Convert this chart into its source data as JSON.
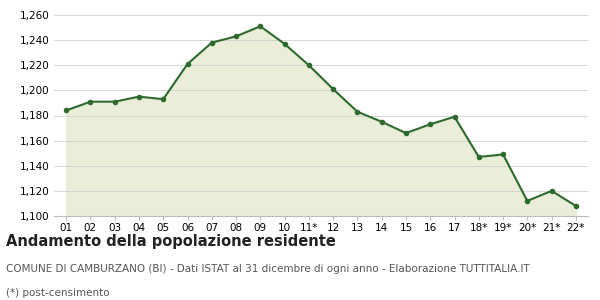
{
  "x_labels": [
    "01",
    "02",
    "03",
    "04",
    "05",
    "06",
    "07",
    "08",
    "09",
    "10",
    "11*",
    "12",
    "13",
    "14",
    "15",
    "16",
    "17",
    "18*",
    "19*",
    "20*",
    "21*",
    "22*"
  ],
  "y_values": [
    1184,
    1191,
    1191,
    1195,
    1193,
    1221,
    1238,
    1243,
    1251,
    1237,
    1220,
    1201,
    1183,
    1175,
    1166,
    1173,
    1179,
    1147,
    1149,
    1112,
    1120,
    1108
  ],
  "ylim": [
    1100,
    1260
  ],
  "yticks": [
    1100,
    1120,
    1140,
    1160,
    1180,
    1200,
    1220,
    1240,
    1260
  ],
  "line_color": "#2d6a2d",
  "fill_color": "#eaedd8",
  "marker_color": "#2d6a2d",
  "bg_color": "#ffffff",
  "grid_color": "#d0d0d0",
  "title": "Andamento della popolazione residente",
  "subtitle": "COMUNE DI CAMBURZANO (BI) - Dati ISTAT al 31 dicembre di ogni anno - Elaborazione TUTTITALIA.IT",
  "footnote": "(*) post-censimento",
  "title_fontsize": 10.5,
  "subtitle_fontsize": 7.5,
  "footnote_fontsize": 7.5
}
